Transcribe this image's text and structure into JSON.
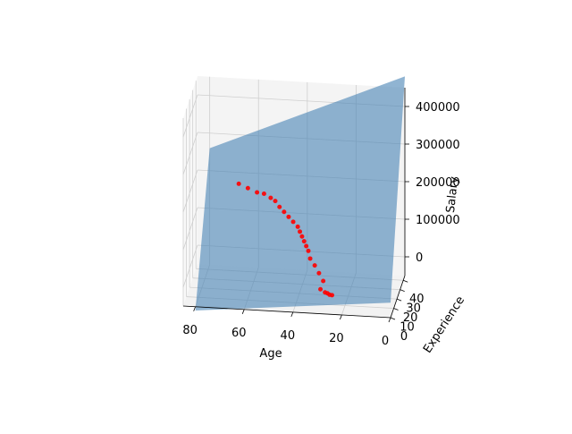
{
  "chart_data": {
    "type": "scatter",
    "subtype": "3d-scatter-with-regression-plane",
    "title": "",
    "xlabel": "Age",
    "ylabel": "Experience",
    "zlabel": "Salary",
    "x_ticks": [
      "80",
      "60",
      "40",
      "20",
      "0"
    ],
    "y_ticks": [
      "0",
      "10",
      "20",
      "30",
      "40"
    ],
    "z_ticks": [
      "0",
      "100000",
      "200000",
      "300000",
      "400000"
    ],
    "xlim": [
      0,
      85
    ],
    "ylim": [
      0,
      45
    ],
    "zlim": [
      -50000,
      450000
    ],
    "grid": true,
    "legend": "none",
    "plane": {
      "description": "fitted regression plane Salary = f(Age, Experience)",
      "corners": [
        {
          "age": 80,
          "experience": 0,
          "salary": -60000
        },
        {
          "age": 0,
          "experience": 0,
          "salary": -10000
        },
        {
          "age": 0,
          "experience": 45,
          "salary": 480000
        },
        {
          "age": 80,
          "experience": 45,
          "salary": 260000
        }
      ],
      "color": "#4682b4",
      "opacity": 0.6
    },
    "series": [
      {
        "marker_color": "#ff0000",
        "points": [
          {
            "age": 28,
            "experience": 3,
            "salary": 30000
          },
          {
            "age": 30,
            "experience": 5,
            "salary": 45000
          },
          {
            "age": 32,
            "experience": 7,
            "salary": 60000
          },
          {
            "age": 34,
            "experience": 8,
            "salary": 75000
          },
          {
            "age": 35,
            "experience": 10,
            "salary": 90000
          },
          {
            "age": 36,
            "experience": 11,
            "salary": 100000
          },
          {
            "age": 37,
            "experience": 12,
            "salary": 110000
          },
          {
            "age": 38,
            "experience": 13,
            "salary": 120000
          },
          {
            "age": 39,
            "experience": 14,
            "salary": 130000
          },
          {
            "age": 40,
            "experience": 15,
            "salary": 140000
          },
          {
            "age": 42,
            "experience": 16,
            "salary": 150000
          },
          {
            "age": 44,
            "experience": 17,
            "salary": 160000
          },
          {
            "age": 46,
            "experience": 18,
            "salary": 170000
          },
          {
            "age": 48,
            "experience": 19,
            "salary": 180000
          },
          {
            "age": 50,
            "experience": 21,
            "salary": 190000
          },
          {
            "age": 52,
            "experience": 22,
            "salary": 195000
          },
          {
            "age": 55,
            "experience": 24,
            "salary": 200000
          },
          {
            "age": 58,
            "experience": 25,
            "salary": 200000
          },
          {
            "age": 62,
            "experience": 27,
            "salary": 205000
          },
          {
            "age": 66,
            "experience": 29,
            "salary": 210000
          },
          {
            "age": 29,
            "experience": 2,
            "salary": 10000
          },
          {
            "age": 27,
            "experience": 1,
            "salary": 5000
          },
          {
            "age": 25,
            "experience": 0,
            "salary": 2000
          },
          {
            "age": 24,
            "experience": 0,
            "salary": 1000
          },
          {
            "age": 26,
            "experience": 1,
            "salary": 3000
          }
        ]
      }
    ]
  }
}
